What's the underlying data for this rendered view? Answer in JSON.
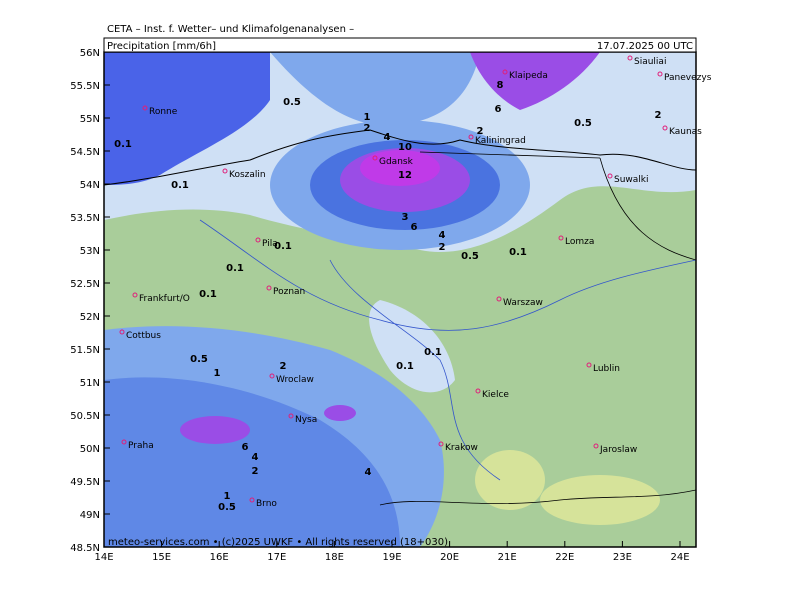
{
  "header": {
    "institute": "CETA – Inst. f. Wetter– und Klimafolgenanalysen –",
    "product": "Precipitation [mm/6h]",
    "valid_time": "17.07.2025 00 UTC"
  },
  "axes": {
    "latitudes": [
      "56N",
      "55.5N",
      "55N",
      "54.5N",
      "54N",
      "53.5N",
      "53N",
      "52.5N",
      "52N",
      "51.5N",
      "51N",
      "50.5N",
      "50N",
      "49.5N",
      "49N",
      "48.5N"
    ],
    "longitudes": [
      "14E",
      "15E",
      "16E",
      "17E",
      "18E",
      "19E",
      "20E",
      "21E",
      "22E",
      "23E",
      "24E"
    ]
  },
  "cities": [
    "Ronne",
    "Koszalin",
    "Gdansk",
    "Kaliningrad",
    "Klaipeda",
    "Siauliai",
    "Panevezys",
    "Kaunas",
    "Suwalki",
    "Lomza",
    "Pila",
    "Poznan",
    "Frankfurt/O",
    "Warszaw",
    "Cottbus",
    "Wroclaw",
    "Lublin",
    "Kielce",
    "Nysa",
    "Praha",
    "Krakow",
    "Jaroslaw",
    "Brno"
  ],
  "contour_labels": [
    "0.5",
    "0.1",
    "0.1",
    "1",
    "2",
    "4",
    "10",
    "12",
    "3",
    "6",
    "4",
    "2",
    "0.5",
    "0.1",
    "0.1",
    "0.1",
    "0.5",
    "1",
    "2",
    "0.1",
    "0.1",
    "0.1",
    "6",
    "4",
    "2",
    "1",
    "0.5",
    "4",
    "8",
    "6",
    "2",
    "0.5",
    "2"
  ],
  "footer": "meteo-services.com • (c)2025 UWKF • All rights reserved (18+030)"
}
